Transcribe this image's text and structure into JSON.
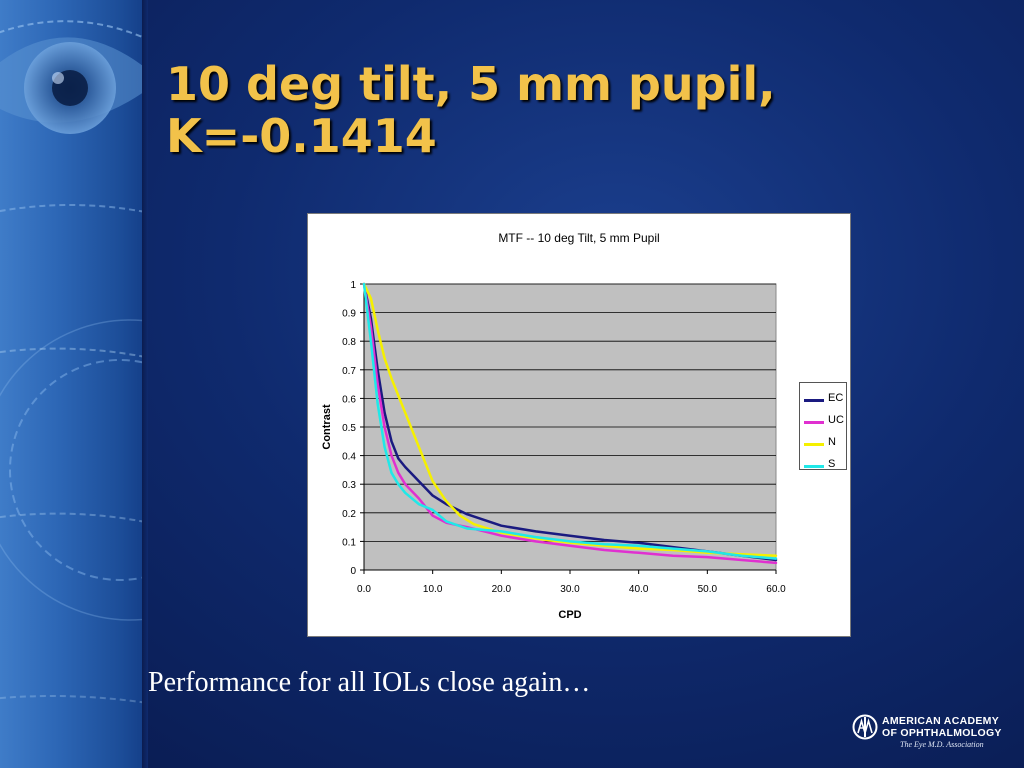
{
  "slide": {
    "title_line1": "10 deg tilt, 5 mm pupil,",
    "title_line2": "K=-0.1414",
    "caption": "Performance for all IOLs close again…"
  },
  "logo": {
    "line1": "AMERICAN ACADEMY",
    "line2": "OF OPHTHALMOLOGY",
    "tagline": "The Eye M.D. Association"
  },
  "chart_data": {
    "type": "line",
    "title": "MTF -- 10 deg Tilt, 5 mm Pupil",
    "xlabel": "CPD",
    "ylabel": "Contrast",
    "xlim": [
      0,
      60
    ],
    "ylim": [
      0,
      1
    ],
    "x_ticks": [
      "0.0",
      "10.0",
      "20.0",
      "30.0",
      "40.0",
      "50.0",
      "60.0"
    ],
    "y_ticks": [
      "0",
      "0.1",
      "0.2",
      "0.3",
      "0.4",
      "0.5",
      "0.6",
      "0.7",
      "0.8",
      "0.9",
      "1"
    ],
    "grid": true,
    "plot_background": "#c0c0c0",
    "legend_position": "right",
    "series": [
      {
        "name": "EC",
        "color": "#1a1a80",
        "x": [
          0,
          1,
          2,
          3,
          4,
          5,
          6,
          8,
          10,
          12,
          15,
          20,
          25,
          30,
          35,
          40,
          45,
          50,
          55,
          60
        ],
        "y": [
          1.0,
          0.88,
          0.7,
          0.55,
          0.45,
          0.39,
          0.36,
          0.31,
          0.26,
          0.23,
          0.195,
          0.155,
          0.135,
          0.12,
          0.105,
          0.095,
          0.08,
          0.065,
          0.05,
          0.035
        ]
      },
      {
        "name": "UC",
        "color": "#e030d0",
        "x": [
          0,
          1,
          2,
          3,
          4,
          5,
          6,
          8,
          10,
          12,
          15,
          20,
          25,
          30,
          35,
          40,
          45,
          50,
          55,
          60
        ],
        "y": [
          1.0,
          0.85,
          0.65,
          0.5,
          0.4,
          0.34,
          0.3,
          0.25,
          0.19,
          0.165,
          0.15,
          0.12,
          0.1,
          0.085,
          0.07,
          0.06,
          0.05,
          0.045,
          0.035,
          0.025
        ]
      },
      {
        "name": "N",
        "color": "#f5f000",
        "x": [
          0,
          1,
          2,
          3,
          4,
          5,
          6,
          8,
          10,
          12,
          14,
          16,
          20,
          25,
          30,
          35,
          40,
          45,
          50,
          55,
          60
        ],
        "y": [
          1.0,
          0.95,
          0.84,
          0.74,
          0.67,
          0.61,
          0.55,
          0.43,
          0.31,
          0.24,
          0.19,
          0.16,
          0.13,
          0.11,
          0.095,
          0.085,
          0.075,
          0.07,
          0.06,
          0.055,
          0.05
        ]
      },
      {
        "name": "S",
        "color": "#20e8e8",
        "x": [
          0,
          1,
          2,
          3,
          4,
          5,
          6,
          8,
          10,
          12,
          15,
          20,
          25,
          30,
          35,
          40,
          45,
          50,
          55,
          60
        ],
        "y": [
          1.0,
          0.8,
          0.58,
          0.43,
          0.34,
          0.3,
          0.27,
          0.23,
          0.21,
          0.17,
          0.145,
          0.135,
          0.115,
          0.1,
          0.09,
          0.085,
          0.075,
          0.065,
          0.05,
          0.04
        ]
      }
    ]
  }
}
